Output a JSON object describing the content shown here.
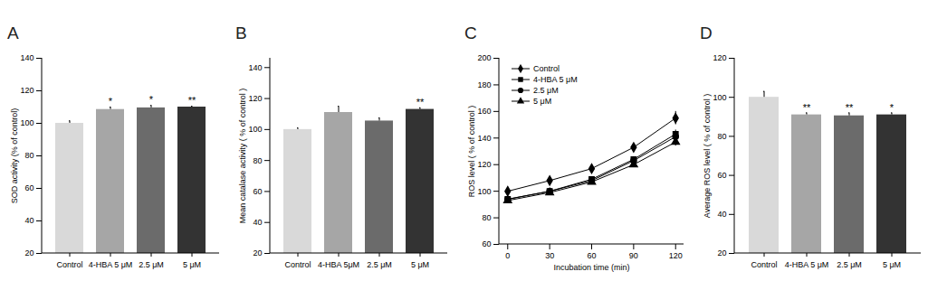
{
  "chart_data": [
    {
      "type": "bar",
      "title": "A",
      "categories": [
        "Control",
        "4-HBA 5 μM",
        "2.5 μM",
        "5 μM"
      ],
      "values": [
        100,
        108.5,
        109.5,
        110
      ],
      "errors": [
        1.5,
        1.5,
        1.5,
        0.5
      ],
      "significance": [
        null,
        "*",
        "*",
        "**"
      ],
      "colors": [
        "#d9d9d9",
        "#a6a6a6",
        "#6b6b6b",
        "#333333"
      ],
      "y_label": "SOD activity (% of control)",
      "ylim": [
        20,
        140
      ],
      "yticks": [
        20,
        40,
        60,
        80,
        100,
        120,
        140
      ]
    },
    {
      "type": "bar",
      "title": "B",
      "categories": [
        "Control",
        "4-HBA 5μM",
        "2.5 μM",
        "5 μM"
      ],
      "values": [
        100,
        111,
        105.5,
        113
      ],
      "errors": [
        1,
        4,
        2,
        1
      ],
      "significance": [
        null,
        null,
        null,
        "**"
      ],
      "colors": [
        "#d9d9d9",
        "#a6a6a6",
        "#6b6b6b",
        "#333333"
      ],
      "y_label": "Mean catalase activity ( % of control )",
      "ylim": [
        20,
        146
      ],
      "yticks": [
        20,
        40,
        60,
        80,
        100,
        120,
        140
      ]
    },
    {
      "type": "line",
      "title": "C",
      "x": [
        0,
        30,
        60,
        90,
        120
      ],
      "series": [
        {
          "name": "Control",
          "color": "#000000",
          "marker": "diamond",
          "values": [
            100,
            108,
            117,
            133,
            155
          ],
          "errors": [
            1,
            1,
            1,
            2,
            5
          ]
        },
        {
          "name": "4-HBA 5 μM",
          "color": "#000000",
          "marker": "square",
          "values": [
            94,
            100,
            109,
            124,
            143
          ],
          "errors": [
            1,
            1,
            1,
            2,
            3
          ]
        },
        {
          "name": "2.5 μM",
          "color": "#000000",
          "marker": "circle",
          "values": [
            94,
            100,
            108,
            123,
            141
          ],
          "errors": [
            1,
            1,
            1,
            2,
            3
          ]
        },
        {
          "name": "5 μM",
          "color": "#000000",
          "marker": "triangle",
          "values": [
            93,
            99,
            107,
            120,
            137
          ],
          "errors": [
            1,
            1,
            1,
            2,
            3
          ]
        }
      ],
      "x_label": "Incubation time (min)",
      "y_label": "ROS level ( % of control )",
      "xlim": [
        -6,
        126
      ],
      "xticks": [
        0,
        30,
        60,
        90,
        120
      ],
      "ylim": [
        60,
        200
      ],
      "yticks": [
        60,
        80,
        100,
        120,
        140,
        160,
        180,
        200
      ],
      "legend": "upper left"
    },
    {
      "type": "bar",
      "title": "D",
      "categories": [
        "Control",
        "4-HBA 5 μM",
        "2.5 μM",
        "5 μM"
      ],
      "values": [
        100,
        91,
        90.5,
        91
      ],
      "errors": [
        3,
        1,
        1.5,
        1
      ],
      "significance": [
        null,
        "**",
        "**",
        "*"
      ],
      "colors": [
        "#d9d9d9",
        "#a6a6a6",
        "#6b6b6b",
        "#333333"
      ],
      "y_label": "Average ROS level ( % of control )",
      "ylim": [
        20,
        120
      ],
      "yticks": [
        20,
        40,
        60,
        80,
        100,
        120
      ]
    }
  ]
}
